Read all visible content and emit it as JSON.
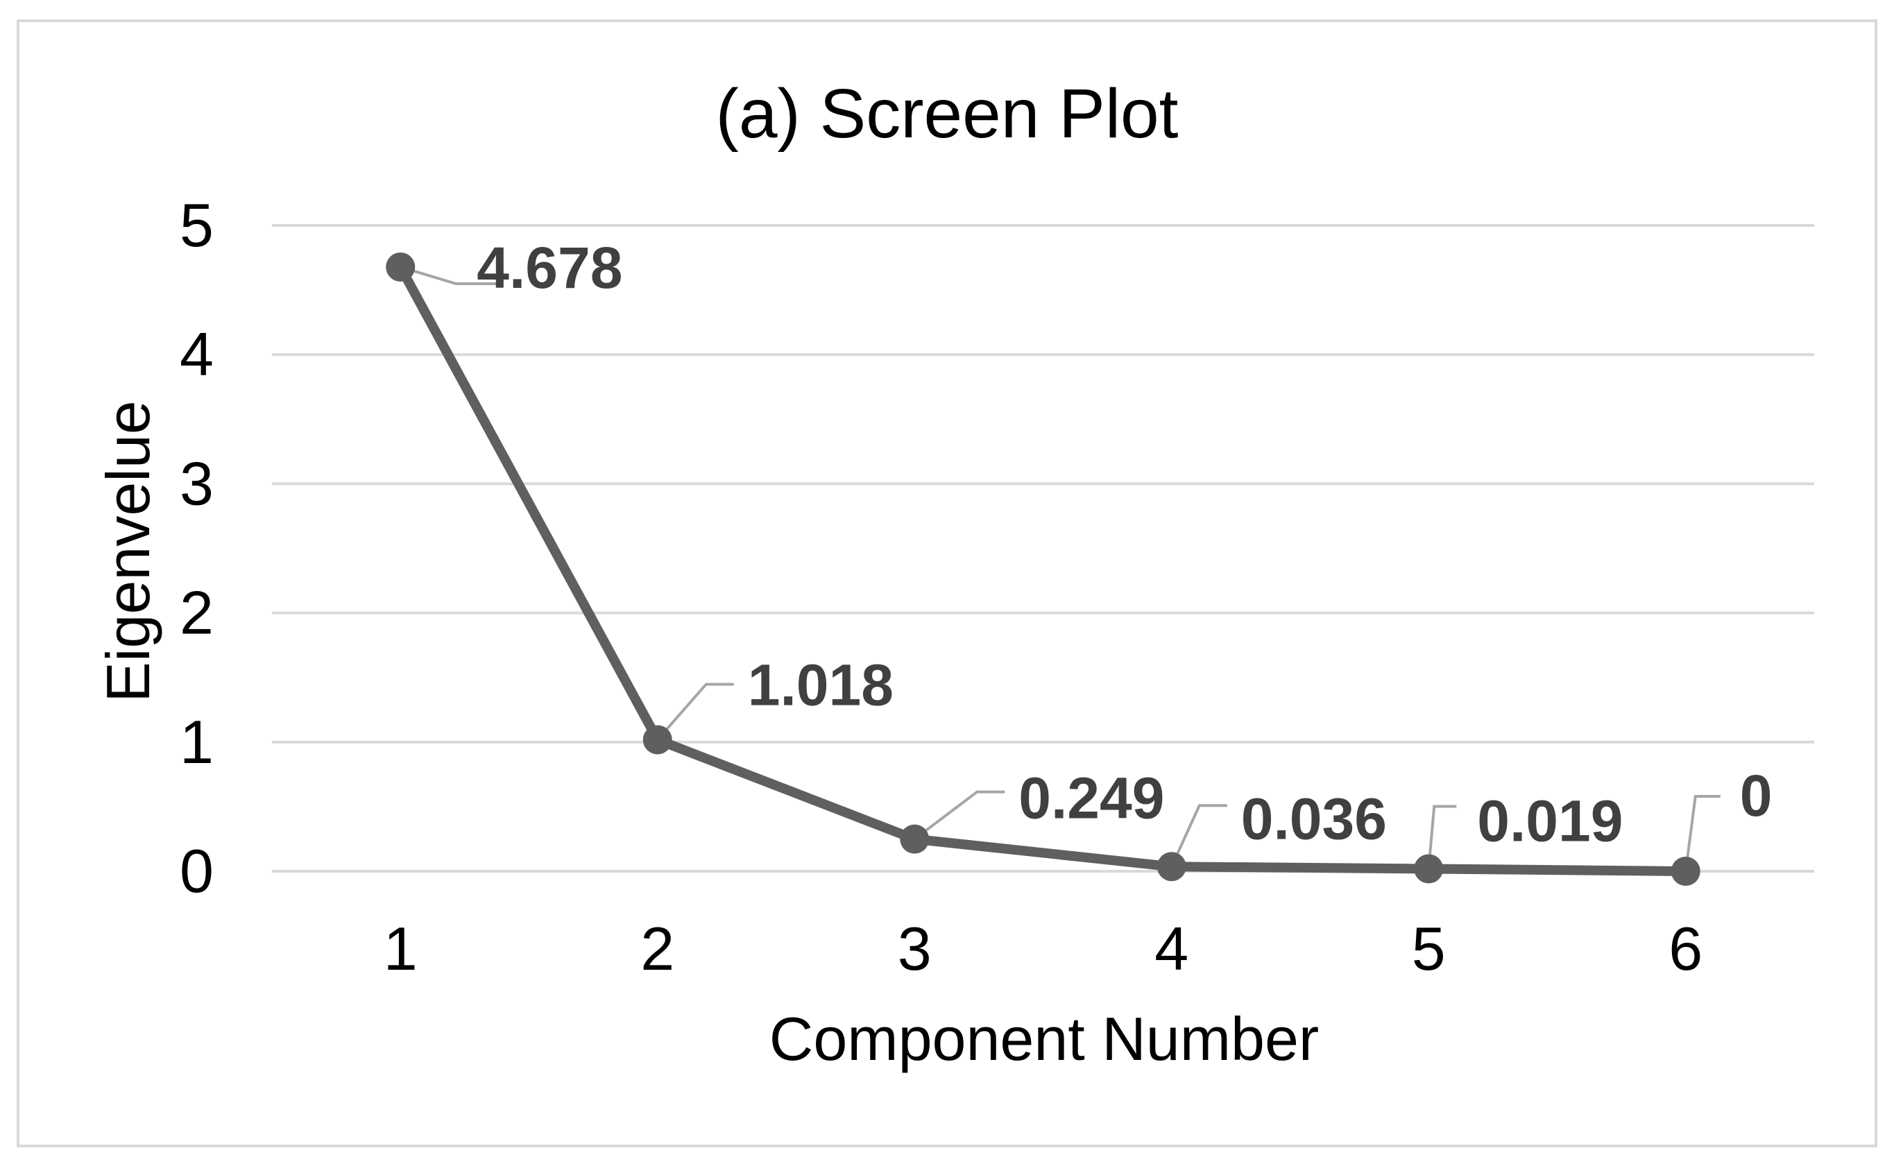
{
  "chart_data": {
    "type": "line",
    "title": "(a) Screen Plot",
    "xlabel": "Component Number",
    "ylabel": "Eigenvelue",
    "x": [
      1,
      2,
      3,
      4,
      5,
      6
    ],
    "x_tick_labels": [
      "1",
      "2",
      "3",
      "4",
      "5",
      "6"
    ],
    "y_tick_labels": [
      "0",
      "1",
      "2",
      "3",
      "4",
      "5"
    ],
    "ylim": [
      0,
      5
    ],
    "grid": true,
    "legend": false,
    "series": [
      {
        "values": [
          4.678,
          1.018,
          0.249,
          0.036,
          0.019,
          0
        ],
        "data_labels": [
          "4.678",
          "1.018",
          "0.249",
          "0.036",
          "0.019",
          "0"
        ]
      }
    ],
    "colors": {
      "line": "#5f5f5f",
      "gridline": "#d9d9d9",
      "leader": "#a6a6a6",
      "frame": "#d9d9d9",
      "label_text": "#404040",
      "axis_text": "#000000"
    }
  }
}
